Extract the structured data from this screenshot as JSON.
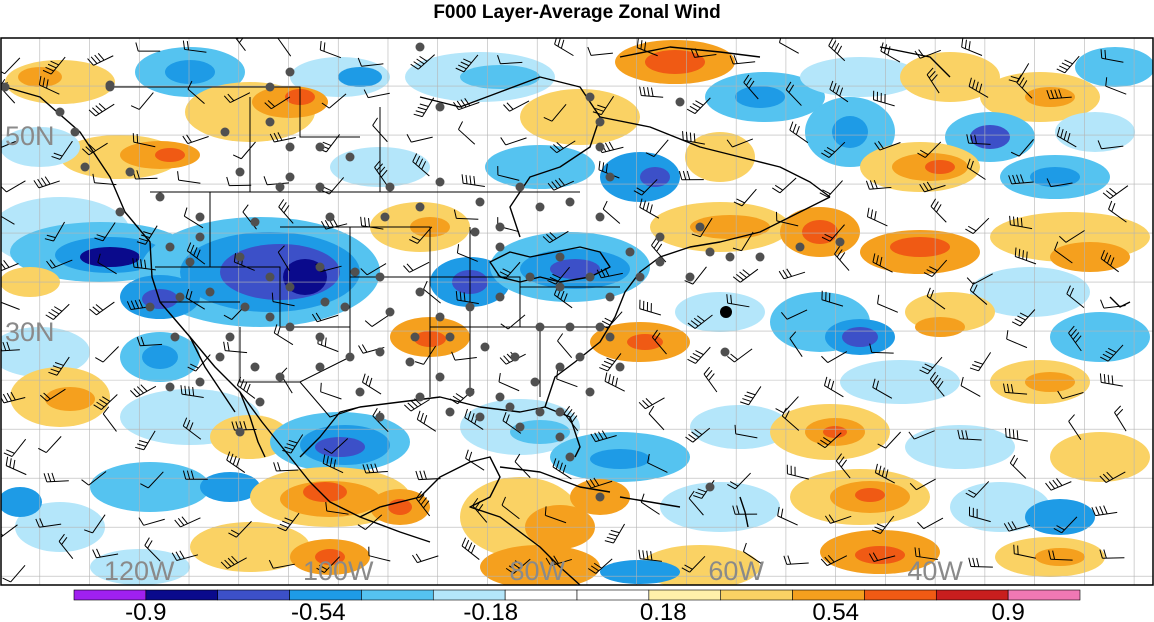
{
  "title": "F000 Layer-Average Zonal Wind",
  "map": {
    "lat_labels": [
      {
        "text": "50N",
        "lat": 50
      },
      {
        "text": "30N",
        "lat": 30
      }
    ],
    "lon_labels": [
      {
        "text": "120W",
        "lon": -120
      },
      {
        "text": "100W",
        "lon": -100
      },
      {
        "text": "80W",
        "lon": -80
      },
      {
        "text": "60W",
        "lon": -60
      },
      {
        "text": "40W",
        "lon": -40
      }
    ]
  },
  "colorbar": {
    "segment_colors": [
      "#a020f0",
      "#0a0a8c",
      "#3c50c8",
      "#1e9be6",
      "#55c3f0",
      "#b4e6fa",
      "#ffffff",
      "#ffffff",
      "#fff0aa",
      "#fad264",
      "#f5a01e",
      "#f05a14",
      "#c81e1e",
      "#f078b4"
    ],
    "labels": [
      "-0.9",
      "-0.54",
      "-0.18",
      "0.18",
      "0.54",
      "0.9"
    ]
  }
}
